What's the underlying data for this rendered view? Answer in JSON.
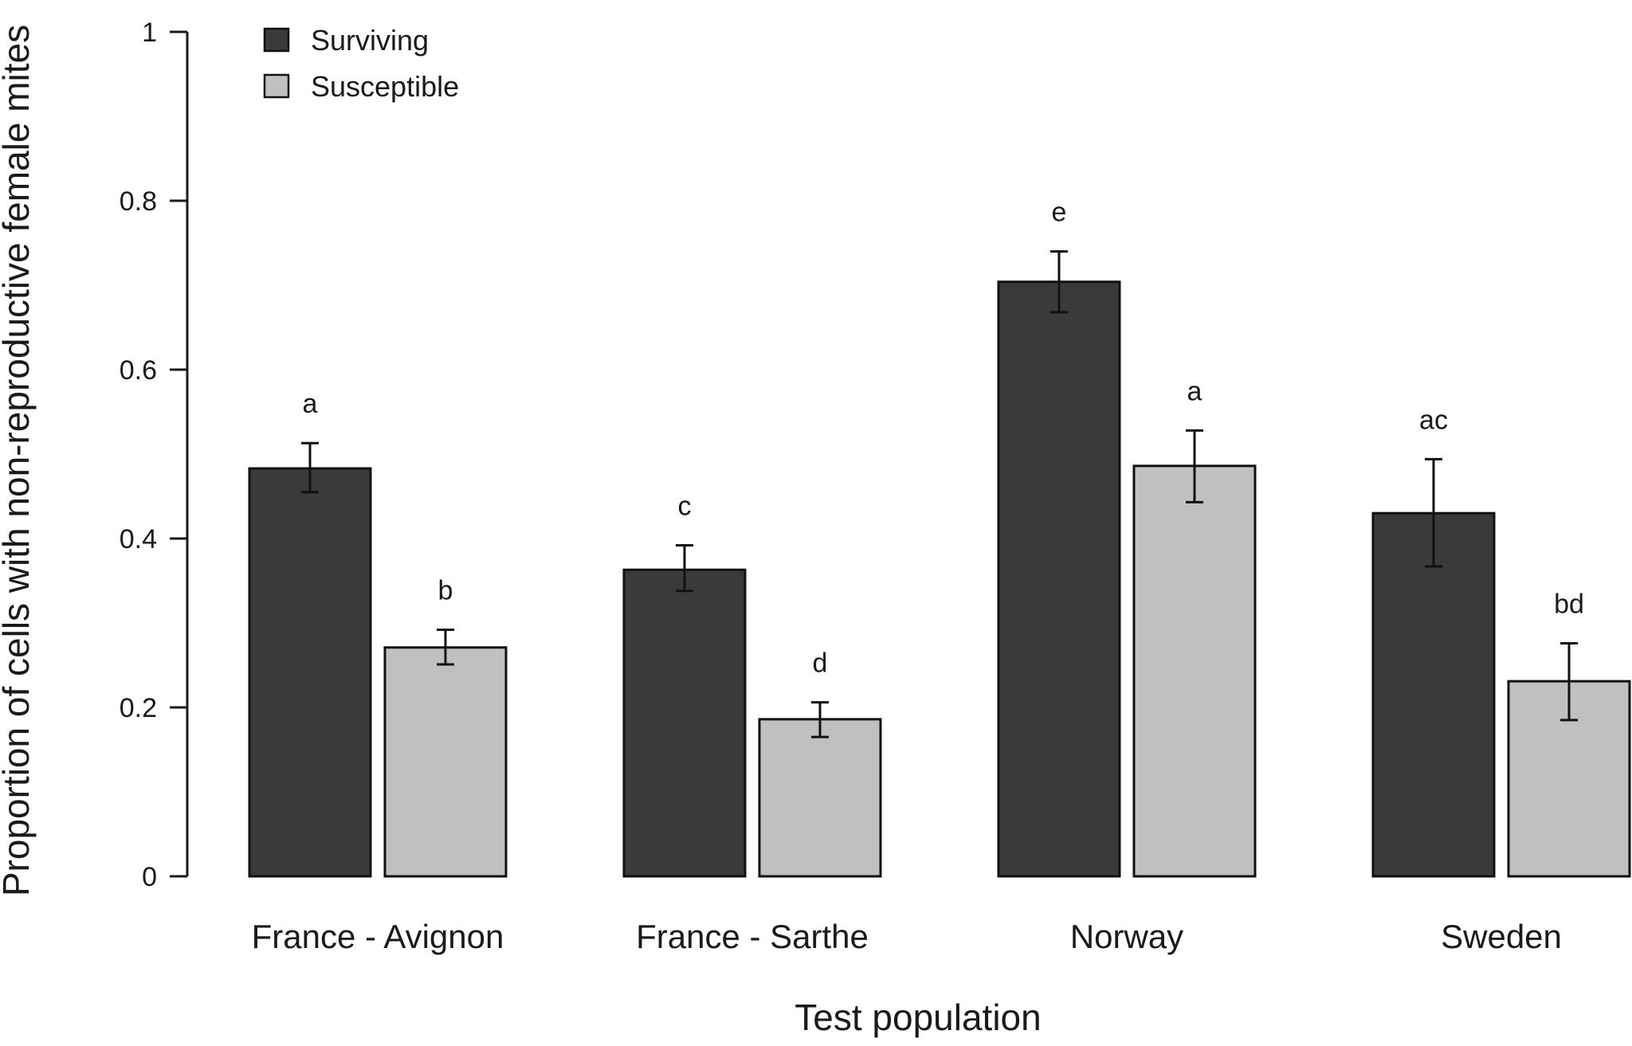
{
  "chart_data": {
    "type": "bar",
    "xlabel": "Test population",
    "ylabel": "Proportion of cells with non-reproductive female mites",
    "ylim": [
      0,
      1
    ],
    "yticks": [
      0,
      0.2,
      0.4,
      0.6,
      0.8,
      1
    ],
    "ytick_labels": [
      "0",
      "0.2",
      "0.4",
      "0.6",
      "0.8",
      "1"
    ],
    "categories": [
      "France - Avignon",
      "France - Sarthe",
      "Norway",
      "Sweden"
    ],
    "series": [
      {
        "name": "Surviving",
        "color": "#3a3a3a",
        "values": [
          0.483,
          0.363,
          0.704,
          0.43
        ],
        "err_low": [
          0.455,
          0.338,
          0.668,
          0.367
        ],
        "err_high": [
          0.513,
          0.392,
          0.74,
          0.494
        ],
        "letters": [
          "a",
          "c",
          "e",
          "ac"
        ]
      },
      {
        "name": "Susceptible",
        "color": "#c0c0c0",
        "values": [
          0.271,
          0.186,
          0.486,
          0.231
        ],
        "err_low": [
          0.251,
          0.165,
          0.443,
          0.185
        ],
        "err_high": [
          0.292,
          0.206,
          0.528,
          0.276
        ],
        "letters": [
          "b",
          "d",
          "a",
          "bd"
        ]
      }
    ],
    "grid": false,
    "legend_position": "top-left"
  }
}
